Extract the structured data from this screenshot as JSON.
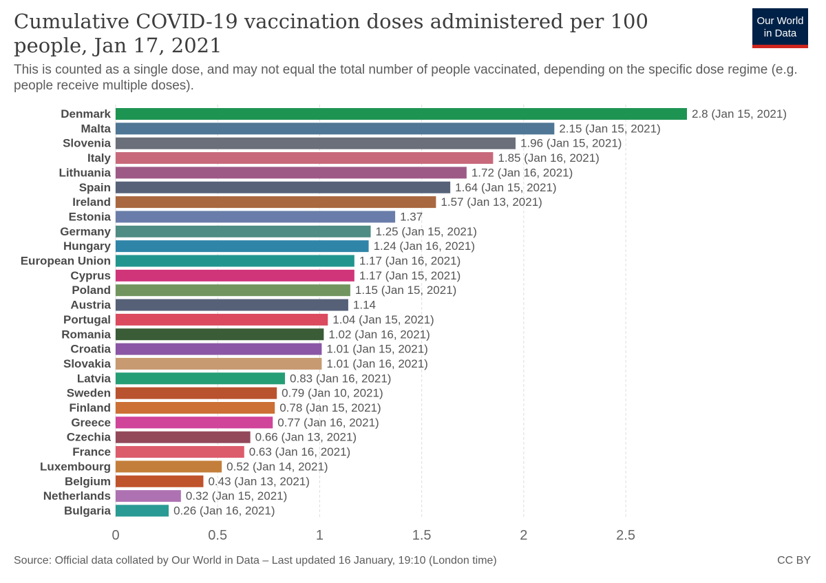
{
  "header": {
    "title": "Cumulative COVID-19 vaccination doses administered per 100 people, Jan 17, 2021",
    "subtitle": "This is counted as a single dose, and may not equal the total number of people vaccinated, depending on the specific dose regime (e.g. people receive multiple doses).",
    "logo_line1": "Our World",
    "logo_line2": "in Data"
  },
  "footer": {
    "source": "Source: Official data collated by Our World in Data – Last updated 16 January, 19:10 (London time)",
    "license": "CC BY"
  },
  "chart_data": {
    "type": "bar",
    "orientation": "horizontal",
    "title": "Cumulative COVID-19 vaccination doses administered per 100 people, Jan 17, 2021",
    "xlabel": "",
    "ylabel": "",
    "xlim": [
      0,
      2.8
    ],
    "xticks": [
      0,
      0.5,
      1,
      1.5,
      2,
      2.5
    ],
    "xtick_labels": [
      "0",
      "0.5",
      "1",
      "1.5",
      "2",
      "2.5"
    ],
    "grid": "vertical dashed",
    "categories": [
      "Denmark",
      "Malta",
      "Slovenia",
      "Italy",
      "Lithuania",
      "Spain",
      "Ireland",
      "Estonia",
      "Germany",
      "Hungary",
      "European Union",
      "Cyprus",
      "Poland",
      "Austria",
      "Portugal",
      "Romania",
      "Croatia",
      "Slovakia",
      "Latvia",
      "Sweden",
      "Finland",
      "Greece",
      "Czechia",
      "France",
      "Luxembourg",
      "Belgium",
      "Netherlands",
      "Bulgaria"
    ],
    "values": [
      2.8,
      2.15,
      1.96,
      1.85,
      1.72,
      1.64,
      1.57,
      1.37,
      1.25,
      1.24,
      1.17,
      1.17,
      1.15,
      1.14,
      1.04,
      1.02,
      1.01,
      1.01,
      0.83,
      0.79,
      0.78,
      0.77,
      0.66,
      0.63,
      0.52,
      0.43,
      0.32,
      0.26
    ],
    "value_labels": [
      "2.8 (Jan 15, 2021)",
      "2.15 (Jan 15, 2021)",
      "1.96 (Jan 15, 2021)",
      "1.85 (Jan 16, 2021)",
      "1.72 (Jan 16, 2021)",
      "1.64 (Jan 15, 2021)",
      "1.57 (Jan 13, 2021)",
      "1.37",
      "1.25 (Jan 15, 2021)",
      "1.24 (Jan 16, 2021)",
      "1.17 (Jan 16, 2021)",
      "1.17 (Jan 15, 2021)",
      "1.15 (Jan 15, 2021)",
      "1.14",
      "1.04 (Jan 15, 2021)",
      "1.02 (Jan 16, 2021)",
      "1.01 (Jan 15, 2021)",
      "1.01 (Jan 16, 2021)",
      "0.83 (Jan 16, 2021)",
      "0.79 (Jan 10, 2021)",
      "0.78 (Jan 15, 2021)",
      "0.77 (Jan 16, 2021)",
      "0.66 (Jan 13, 2021)",
      "0.63 (Jan 16, 2021)",
      "0.52 (Jan 14, 2021)",
      "0.43 (Jan 13, 2021)",
      "0.32 (Jan 15, 2021)",
      "0.26 (Jan 16, 2021)"
    ],
    "colors": [
      "#1e9453",
      "#4f7695",
      "#6b6f7a",
      "#c8697b",
      "#9e5a86",
      "#576279",
      "#a9683f",
      "#6a7daa",
      "#4e8c84",
      "#2f85a8",
      "#23958f",
      "#d0357a",
      "#72955f",
      "#566178",
      "#db4a5e",
      "#3a5c36",
      "#8a56a5",
      "#c79a72",
      "#269e75",
      "#b9522e",
      "#cc7035",
      "#d0449a",
      "#93495a",
      "#dc5c6c",
      "#c47e3b",
      "#bf532c",
      "#ae72b2",
      "#2a9a94"
    ]
  }
}
